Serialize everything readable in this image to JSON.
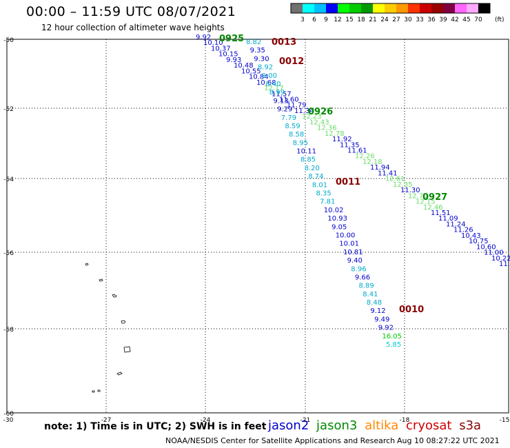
{
  "header": {
    "title": "00:00 – 11:59 UTC 08/07/2021",
    "subtitle": "12 hour collection of altimeter wave heights"
  },
  "colorbar": {
    "unit_label": "(ft)",
    "labels": [
      "3",
      "6",
      "9",
      "12",
      "15",
      "18",
      "21",
      "24",
      "27",
      "30",
      "33",
      "36",
      "39",
      "42",
      "45",
      "70"
    ],
    "colors": [
      "#707070",
      "#00ffff",
      "#00c0ff",
      "#0000ff",
      "#00ff00",
      "#00cc00",
      "#009900",
      "#ffff00",
      "#ffcc00",
      "#ff9900",
      "#ff3300",
      "#cc0000",
      "#990000",
      "#800040",
      "#ff66ff",
      "#ffaaff",
      "#000000"
    ]
  },
  "map": {
    "lat_labels": [
      "-50",
      "-52",
      "-54",
      "-56",
      "-58",
      "-60"
    ],
    "lon_labels": [
      "-30",
      "-27",
      "-24",
      "-21",
      "-18",
      "-15"
    ]
  },
  "tracks": [
    {
      "name": "track-0925-0926-0927",
      "points": [
        {
          "t": "9.92",
          "c": "#0000cc"
        },
        {
          "t": "10.10",
          "c": "#0000cc"
        },
        {
          "t": "10.37",
          "c": "#0000cc"
        },
        {
          "t": "10.15",
          "c": "#0000cc"
        },
        {
          "t": "9.93",
          "c": "#0000cc"
        },
        {
          "t": "10.48",
          "c": "#0000cc"
        },
        {
          "t": "10.55",
          "c": "#0000cc"
        },
        {
          "t": "10.84",
          "c": "#0000cc"
        },
        {
          "t": "10.68",
          "c": "#0000cc"
        },
        {
          "t": "12.17",
          "c": "#66dd66"
        },
        {
          "t": "11.57",
          "c": "#0000cc"
        },
        {
          "t": "11.60",
          "c": "#0000cc"
        },
        {
          "t": "11.79",
          "c": "#0000cc"
        },
        {
          "t": "11.34",
          "c": "#0000cc"
        },
        {
          "t": "12.23",
          "c": "#66dd66"
        },
        {
          "t": "12.43",
          "c": "#66dd66"
        },
        {
          "t": "12.36",
          "c": "#66dd66"
        },
        {
          "t": "12.78",
          "c": "#66dd66"
        },
        {
          "t": "11.92",
          "c": "#0000cc"
        },
        {
          "t": "11.35",
          "c": "#0000cc"
        },
        {
          "t": "11.61",
          "c": "#0000cc"
        },
        {
          "t": "12.26",
          "c": "#66dd66"
        },
        {
          "t": "12.18",
          "c": "#66dd66"
        },
        {
          "t": "11.94",
          "c": "#0000cc"
        },
        {
          "t": "11.41",
          "c": "#0000cc"
        },
        {
          "t": "12.61",
          "c": "#66dd66"
        },
        {
          "t": "12.35",
          "c": "#66dd66"
        },
        {
          "t": "11.30",
          "c": "#0000cc"
        },
        {
          "t": "12.70",
          "c": "#66dd66"
        },
        {
          "t": "12.15",
          "c": "#66dd66"
        },
        {
          "t": "12.46",
          "c": "#66dd66"
        },
        {
          "t": "11.51",
          "c": "#0000cc"
        },
        {
          "t": "11.09",
          "c": "#0000cc"
        },
        {
          "t": "11.24",
          "c": "#0000cc"
        },
        {
          "t": "11.26",
          "c": "#0000cc"
        },
        {
          "t": "10.43",
          "c": "#0000cc"
        },
        {
          "t": "10.75",
          "c": "#0000cc"
        },
        {
          "t": "10.60",
          "c": "#0000cc"
        },
        {
          "t": "11.00",
          "c": "#0000cc"
        },
        {
          "t": "10.22",
          "c": "#0000cc"
        },
        {
          "t": "11.",
          "c": "#0000cc"
        }
      ]
    },
    {
      "name": "track-0013-0012-0011-0010",
      "points": [
        {
          "t": "8.82",
          "c": "#00aacc"
        },
        {
          "t": "9.35",
          "c": "#0000cc"
        },
        {
          "t": "9.30",
          "c": "#0000cc"
        },
        {
          "t": "8.92",
          "c": "#00aacc"
        },
        {
          "t": "9.00",
          "c": "#00aacc"
        },
        {
          "t": "8.40",
          "c": "#00aacc"
        },
        {
          "t": "8.99",
          "c": "#00aacc"
        },
        {
          "t": "9.13",
          "c": "#0000cc"
        },
        {
          "t": "9.29",
          "c": "#0000cc"
        },
        {
          "t": "7.79",
          "c": "#00aacc"
        },
        {
          "t": "8.59",
          "c": "#00aacc"
        },
        {
          "t": "8.58",
          "c": "#00aacc"
        },
        {
          "t": "8.95",
          "c": "#00aacc"
        },
        {
          "t": "10.11",
          "c": "#0000cc"
        },
        {
          "t": "8.85",
          "c": "#00aacc"
        },
        {
          "t": "8.20",
          "c": "#00aacc"
        },
        {
          "t": "8.74",
          "c": "#00aacc"
        },
        {
          "t": "8.01",
          "c": "#00aacc"
        },
        {
          "t": "8.35",
          "c": "#00aacc"
        },
        {
          "t": "7.81",
          "c": "#00aacc"
        },
        {
          "t": "10.02",
          "c": "#0000cc"
        },
        {
          "t": "10.93",
          "c": "#0000cc"
        },
        {
          "t": "9.05",
          "c": "#0000cc"
        },
        {
          "t": "10.00",
          "c": "#0000cc"
        },
        {
          "t": "10.01",
          "c": "#0000cc"
        },
        {
          "t": "10.81",
          "c": "#0000cc"
        },
        {
          "t": "9.40",
          "c": "#0000cc"
        },
        {
          "t": "8.96",
          "c": "#00aacc"
        },
        {
          "t": "9.66",
          "c": "#0000cc"
        },
        {
          "t": "8.89",
          "c": "#00aacc"
        },
        {
          "t": "8.41",
          "c": "#00aacc"
        },
        {
          "t": "8.48",
          "c": "#00aacc"
        },
        {
          "t": "9.12",
          "c": "#0000cc"
        },
        {
          "t": "9.49",
          "c": "#0000cc"
        },
        {
          "t": "9.92",
          "c": "#0000cc"
        },
        {
          "t": "16.05",
          "c": "#00cc00"
        },
        {
          "t": "5.85",
          "c": "#00cccc"
        }
      ]
    }
  ],
  "time_labels": [
    {
      "t": "0925",
      "c": "#008800"
    },
    {
      "t": "0013",
      "c": "#880000"
    },
    {
      "t": "0012",
      "c": "#880000"
    },
    {
      "t": "0926",
      "c": "#008800"
    },
    {
      "t": "0011",
      "c": "#880000"
    },
    {
      "t": "0927",
      "c": "#008800"
    },
    {
      "t": "0010",
      "c": "#880000"
    }
  ],
  "footer": {
    "note": "note:  1) Time is in UTC;  2) SWH is in feet",
    "satellites": [
      {
        "name": "jason2",
        "color": "#0000cc"
      },
      {
        "name": "jason3",
        "color": "#008800"
      },
      {
        "name": "altika",
        "color": "#ff8800"
      },
      {
        "name": "cryosat",
        "color": "#cc0000"
      },
      {
        "name": "s3a",
        "color": "#880000"
      }
    ],
    "credit": "NOAA/NESDIS Center for Satellite Applications and Research",
    "updated": "Aug 10 08:27:22 UTC 2021"
  }
}
